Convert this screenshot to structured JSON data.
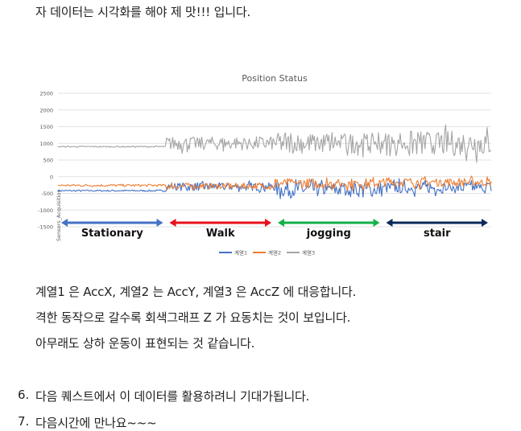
{
  "paragraphs": {
    "intro": "자 데이터는 시각화를 해야 제 맛!!! 입니다.",
    "p1": "계열1 은 AccX, 계열2 는 AccY, 계열3 은 AccZ 에 대응합니다.",
    "p2": "격한 동작으로 갈수록 회색그래프 Z 가 요동치는 것이 보입니다.",
    "p3": "아무래도 상하 운동이 표현되는 것 같습니다."
  },
  "list": [
    {
      "num": "6.",
      "text": "다음 퀘스트에서 이 데이터를 활용하려니 기대가됩니다."
    },
    {
      "num": "7.",
      "text": "다음시간에 만나요~~~"
    }
  ],
  "chart_data": {
    "type": "line",
    "title": "Position Status",
    "ylabel": "Sensors_Acquisition",
    "ylim": [
      -1500,
      2500
    ],
    "yticks": [
      "2500",
      "2000",
      "1500",
      "1000",
      "500",
      "0",
      "-500",
      "-1000",
      "-1500"
    ],
    "grid": true,
    "legend": "bottom",
    "segments": [
      {
        "label": "Stationary",
        "color": "#4472c4"
      },
      {
        "label": "Walk",
        "color": "#e8101a"
      },
      {
        "label": "jogging",
        "color": "#14b04a"
      },
      {
        "label": "stair",
        "color": "#0c2a5a"
      }
    ],
    "series": [
      {
        "name": "계열1",
        "color": "#4472c4",
        "mean": [
          -420,
          -300,
          -380,
          -330
        ],
        "amp": [
          25,
          120,
          230,
          170
        ]
      },
      {
        "name": "계열2",
        "color": "#ed7d31",
        "mean": [
          -260,
          -280,
          -200,
          -160
        ],
        "amp": [
          35,
          90,
          150,
          130
        ]
      },
      {
        "name": "계열3",
        "color": "#a5a5a5",
        "mean": [
          900,
          1000,
          1000,
          1000
        ],
        "amp": [
          20,
          200,
          310,
          380
        ]
      }
    ]
  }
}
